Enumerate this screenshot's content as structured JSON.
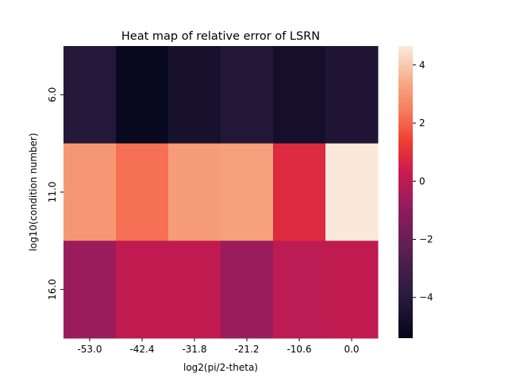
{
  "chart_data": {
    "type": "heatmap",
    "title": "Heat map of relative error of LSRN",
    "xlabel": "log2(pi/2-theta)",
    "ylabel": "log10(condition number)",
    "x_categories": [
      "-53.0",
      "-42.4",
      "-31.8",
      "-21.2",
      "-10.6",
      "0.0"
    ],
    "y_categories": [
      "6.0",
      "11.0",
      "16.0"
    ],
    "values": [
      [
        -4.1,
        -5.2,
        -4.6,
        -4.2,
        -4.7,
        -4.3
      ],
      [
        3.0,
        2.2,
        3.1,
        3.2,
        0.8,
        4.6
      ],
      [
        -0.7,
        0.1,
        0.1,
        -0.7,
        0.0,
        0.1
      ]
    ],
    "colorbar": {
      "vmin": -5.4,
      "vmax": 4.65,
      "ticks": [
        4,
        2,
        0,
        -2,
        -4
      ],
      "tick_labels": [
        "4",
        "2",
        "0",
        "−2",
        "−4"
      ]
    },
    "colormap": "rocket"
  }
}
